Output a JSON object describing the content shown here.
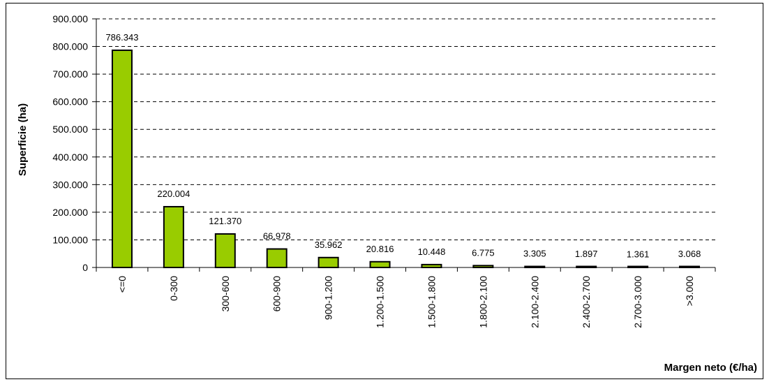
{
  "chart_data": {
    "type": "bar",
    "ylabel": "Superficie (ha)",
    "xlabel": "Margen neto (€/ha)",
    "categories": [
      "<=0",
      "0-300",
      "300-600",
      "600-900",
      "900-1.200",
      "1.200-1.500",
      "1.500-1.800",
      "1.800-2.100",
      "2.100-2.400",
      "2.400-2.700",
      "2.700-3.000",
      ">3.000"
    ],
    "values": [
      786343,
      220004,
      121370,
      66978,
      35962,
      20816,
      10448,
      6775,
      3305,
      1897,
      1361,
      3068
    ],
    "value_labels": [
      "786.343",
      "220.004",
      "121.370",
      "66.978",
      "35.962",
      "20.816",
      "10.448",
      "6.775",
      "3.305",
      "1.897",
      "1.361",
      "3.068"
    ],
    "ylim": [
      0,
      900000
    ],
    "yticks": [
      0,
      100000,
      200000,
      300000,
      400000,
      500000,
      600000,
      700000,
      800000,
      900000
    ],
    "ytick_labels": [
      "0",
      "100.000",
      "200.000",
      "300.000",
      "400.000",
      "500.000",
      "600.000",
      "700.000",
      "800.000",
      "900.000"
    ],
    "grid": "horizontal dashed",
    "bar_color": "#99cc00",
    "legend": "none"
  }
}
